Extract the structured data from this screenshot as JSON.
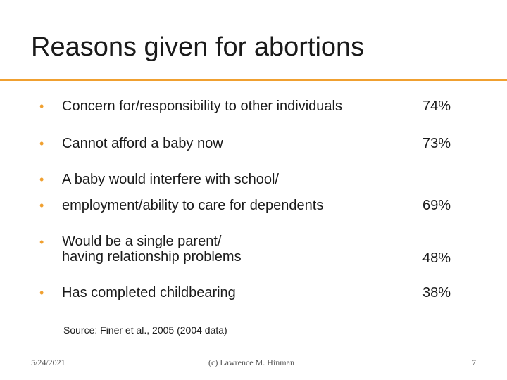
{
  "slide": {
    "title": "Reasons given for abortions",
    "accent_color": "#f0a030",
    "bullet_color": "#f0a030",
    "bullet_glyph": "•",
    "items": [
      {
        "text": "Concern for/responsibility to other individuals",
        "percent": "74%"
      },
      {
        "text": "Cannot afford a baby now",
        "percent": "73%"
      },
      {
        "text": "A baby would interfere with school/",
        "percent": ""
      },
      {
        "text": "employment/ability to care for dependents",
        "percent": "69%"
      },
      {
        "text_line1": "Would be a single parent/",
        "text_line2": "having relationship problems",
        "percent": "48%"
      },
      {
        "text": "Has completed childbearing",
        "percent": "38%"
      }
    ],
    "source": "Source: Finer et al., 2005 (2004 data)"
  },
  "footer": {
    "date": "5/24/2021",
    "author": "(c) Lawrence M. Hinman",
    "page_number": "7"
  }
}
